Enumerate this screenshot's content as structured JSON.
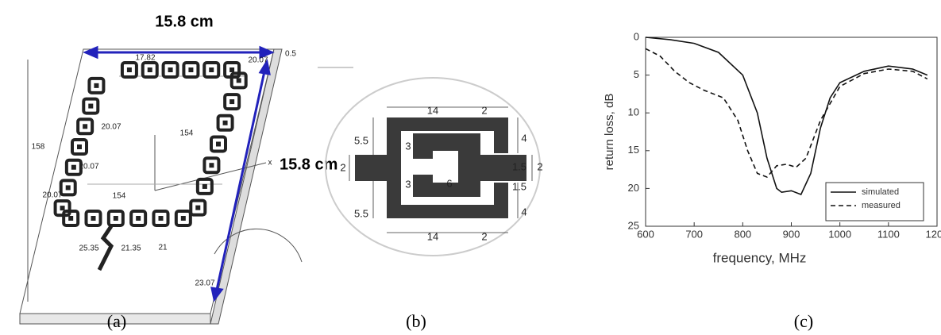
{
  "panel_a": {
    "dimension_labels": [
      "15.8 cm",
      "15.8 cm"
    ],
    "labels": [
      "17.82",
      "20.07",
      "0.5",
      "158",
      "154",
      "20.07",
      "20.07",
      "x",
      "20.07",
      "154",
      "25.35",
      "21.35",
      "21",
      "23.07"
    ],
    "caption": "(a)"
  },
  "panel_b": {
    "labels": [
      "14",
      "2",
      "5.5",
      "4",
      "3",
      "1.5",
      "6",
      "2",
      "2",
      "3",
      "1.5",
      "5.5",
      "4",
      "14",
      "2"
    ],
    "caption": "(b)"
  },
  "chart_data": {
    "type": "line",
    "caption": "(c)",
    "x_label": "frequency, MHz",
    "y_label": "return loss, dB",
    "xlim": [
      600,
      1200
    ],
    "xticks": [
      600,
      700,
      800,
      900,
      1000,
      1100,
      1200
    ],
    "ylim": [
      25,
      0
    ],
    "yticks": [
      0,
      5,
      10,
      15,
      20,
      25
    ],
    "legend_position": "lower-right",
    "series": [
      {
        "name": "simulated",
        "color": "#111111",
        "line_style": "solid",
        "x": [
          600,
          650,
          700,
          750,
          800,
          830,
          850,
          870,
          880,
          900,
          920,
          940,
          960,
          980,
          1000,
          1050,
          1100,
          1150,
          1180
        ],
        "values": [
          0,
          0.3,
          0.8,
          2,
          5,
          10,
          16,
          20,
          20.5,
          20.3,
          20.8,
          18,
          12,
          8,
          6,
          4.5,
          3.8,
          4.2,
          5
        ]
      },
      {
        "name": "measured",
        "color": "#111111",
        "line_style": "dashed",
        "x": [
          600,
          630,
          660,
          690,
          720,
          760,
          790,
          810,
          830,
          850,
          870,
          890,
          910,
          930,
          960,
          1000,
          1050,
          1100,
          1150,
          1180
        ],
        "values": [
          1.5,
          2.5,
          4.5,
          6,
          7,
          8,
          11,
          15,
          18,
          18.5,
          17,
          16.8,
          17.2,
          16,
          11,
          6.5,
          4.8,
          4.2,
          4.5,
          5.5
        ]
      }
    ]
  }
}
